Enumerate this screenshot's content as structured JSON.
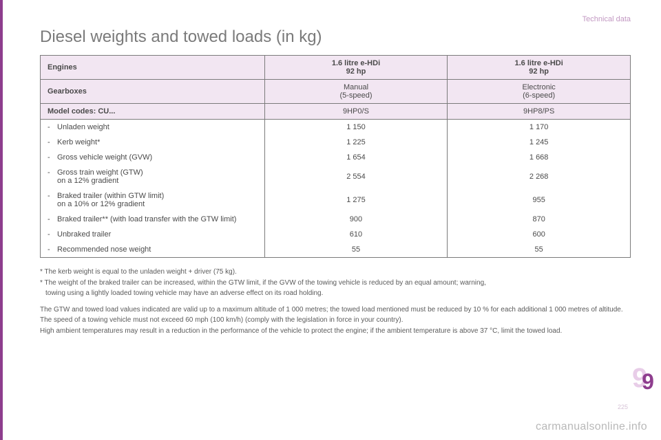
{
  "category": "Technical data",
  "title": "Diesel weights and towed loads (in kg)",
  "colors": {
    "accent": "#8e3d8e",
    "accent_light": "#f2e6f2",
    "text": "#4a4a4a",
    "border": "#7a7a7a",
    "watermark": "#b8b8b8"
  },
  "table": {
    "headers": [
      {
        "label": "Engines",
        "col1": "1.6 litre e-HDi\n92 hp",
        "col2": "1.6 litre e-HDi\n92 hp"
      },
      {
        "label": "Gearboxes",
        "col1": "Manual\n(5-speed)",
        "col2": "Electronic\n(6-speed)"
      },
      {
        "label": "Model codes: CU...",
        "col1": "9HP0/S",
        "col2": "9HP8/PS"
      }
    ],
    "rows": [
      {
        "label": "Unladen weight",
        "col1": "1 150",
        "col2": "1 170"
      },
      {
        "label": "Kerb weight*",
        "col1": "1 225",
        "col2": "1 245"
      },
      {
        "label": "Gross vehicle weight (GVW)",
        "col1": "1 654",
        "col2": "1 668"
      },
      {
        "label": "Gross train weight (GTW)\non a 12% gradient",
        "col1": "2 554",
        "col2": "2 268"
      },
      {
        "label": "Braked trailer (within GTW limit)\non a 10% or 12% gradient",
        "col1": "1 275",
        "col2": "955"
      },
      {
        "label": "Braked trailer** (with load transfer with the GTW limit)",
        "col1": "900",
        "col2": "870"
      },
      {
        "label": "Unbraked trailer",
        "col1": "610",
        "col2": "600"
      },
      {
        "label": "Recommended nose weight",
        "col1": "55",
        "col2": "55"
      }
    ]
  },
  "footnotes": {
    "star1": "* The kerb weight is equal to the unladen weight + driver (75 kg).",
    "star2a": "* The weight of the braked trailer can be increased, within the GTW limit, if the GVW of the towing vehicle is reduced by an equal amount; warning,",
    "star2b": "towing using a lightly loaded towing vehicle may have an adverse effect on its road holding.",
    "p1": "The GTW and towed load values indicated are valid up to a maximum altitude of 1 000 metres; the towed load mentioned must be reduced by 10 % for each additional 1 000 metres of altitude.",
    "p2": "The speed of a towing vehicle must not exceed 60 mph (100 km/h) (comply with the legislation in force in your country).",
    "p3": "High ambient temperatures may result in a reduction in the performance of the vehicle to protect the engine; if the ambient temperature is above 37 °C, limit the towed load."
  },
  "page_tab": "9",
  "page_number": "225",
  "watermark": "carmanualsonline.info"
}
